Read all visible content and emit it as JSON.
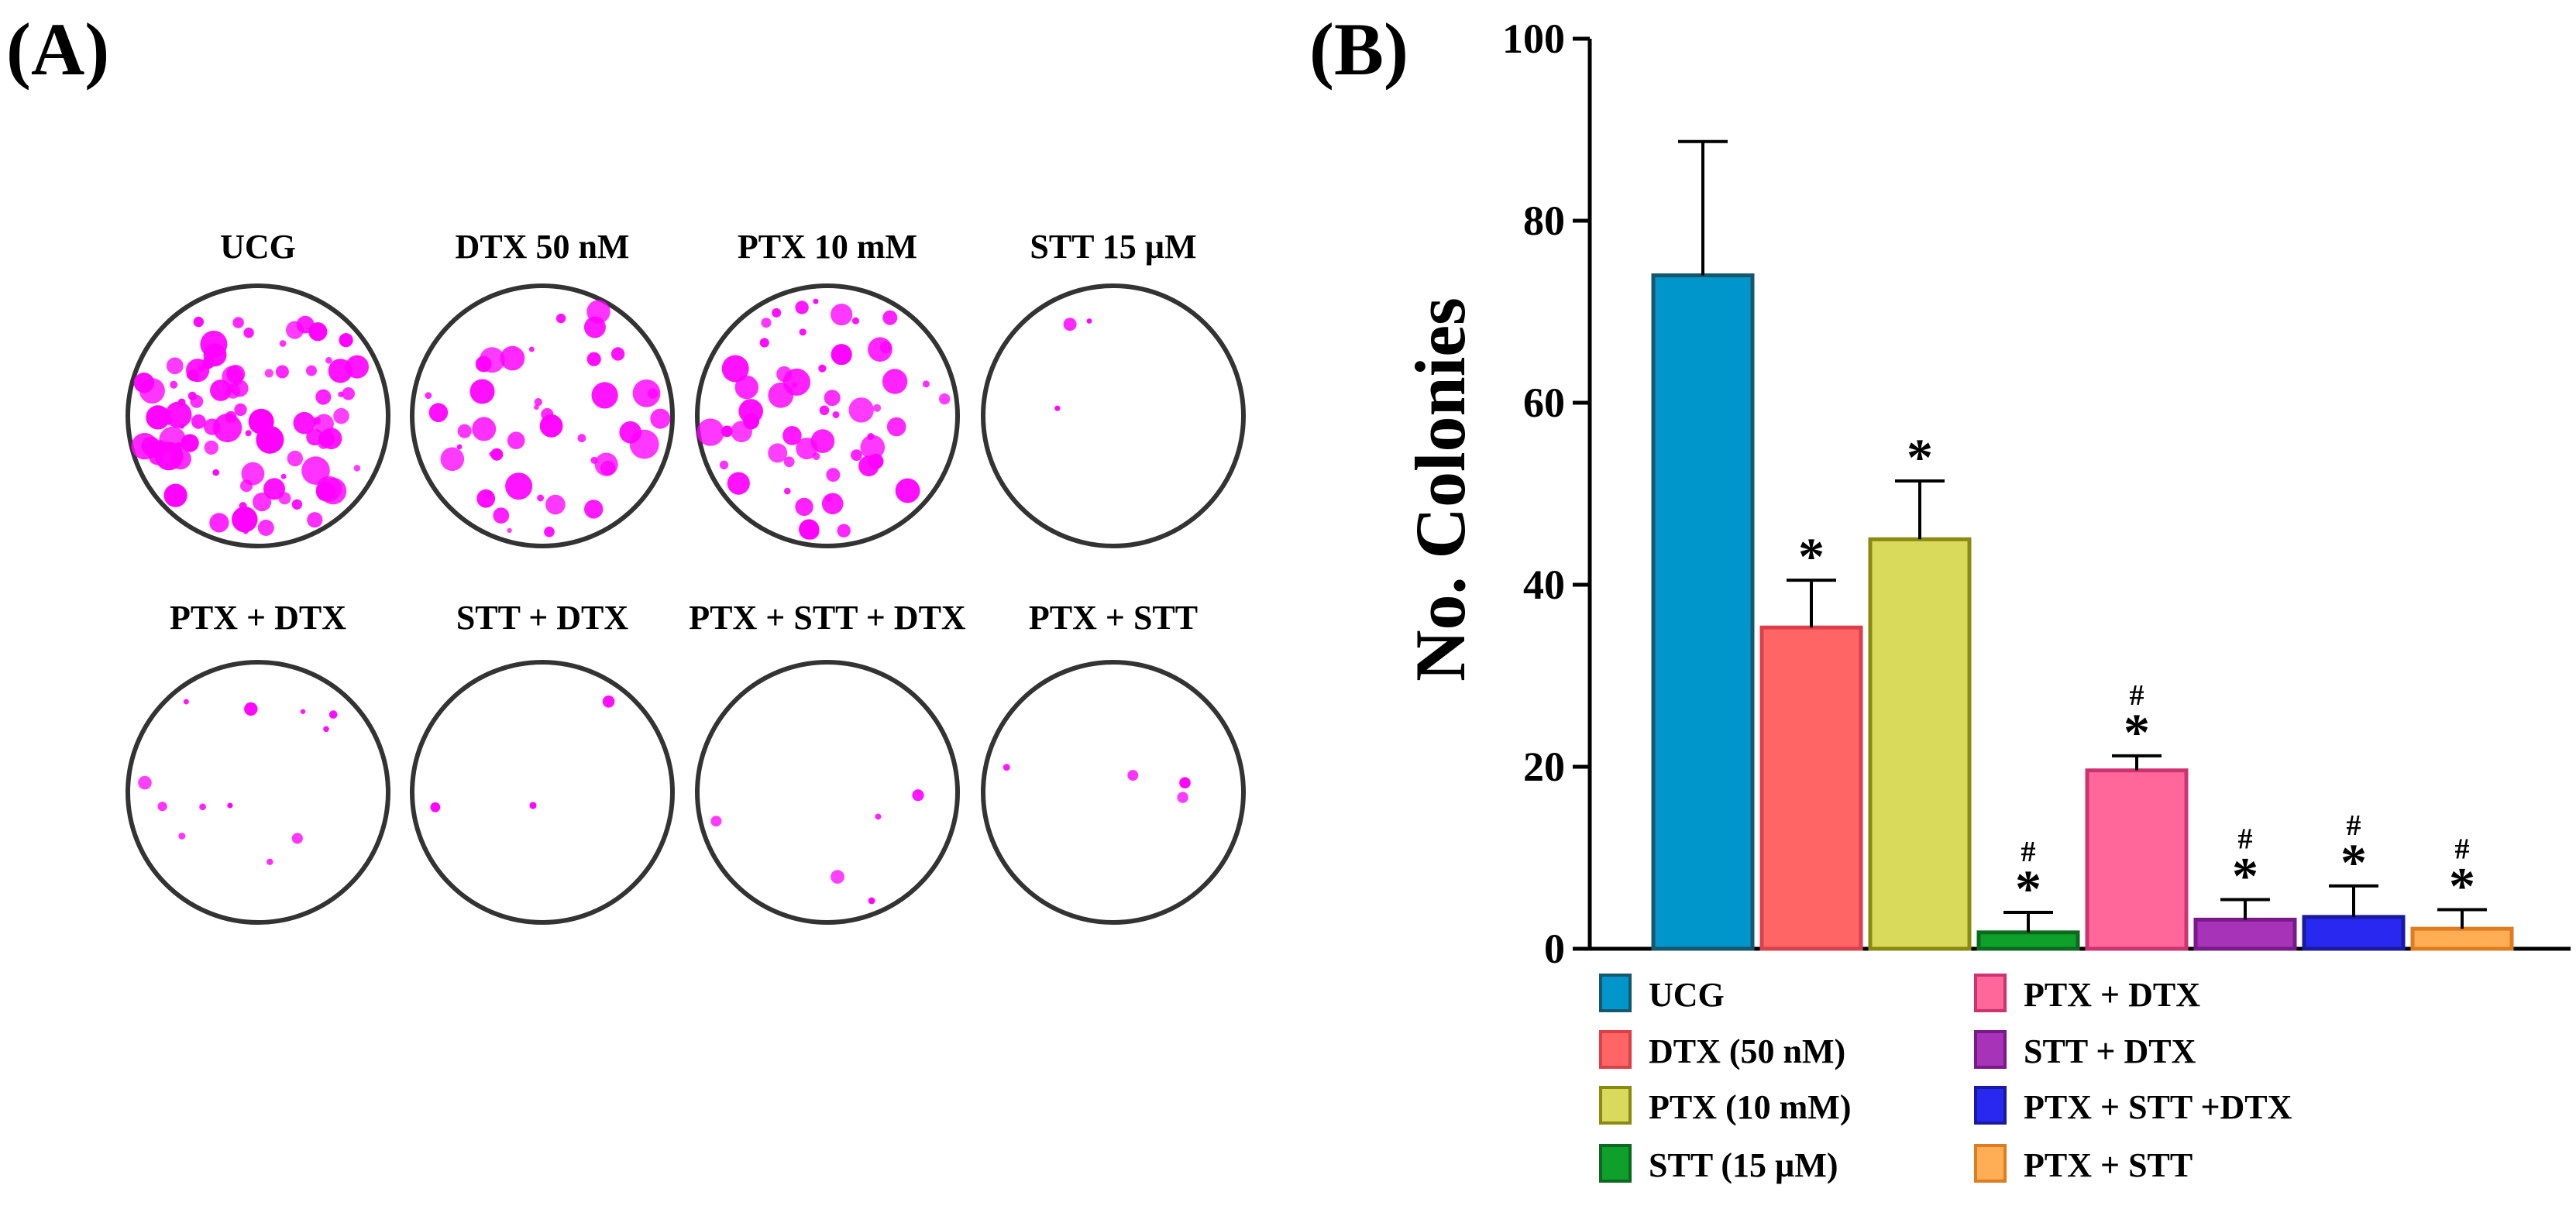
{
  "panels": {
    "a_label": "(A)",
    "b_label": "(B)"
  },
  "dishes": [
    {
      "label": "UCG",
      "density": 1.0
    },
    {
      "label": "DTX 50 nM",
      "density": 0.45
    },
    {
      "label": "PTX 10 mM",
      "density": 0.6
    },
    {
      "label": "STT 15 µM",
      "density": 0.02
    },
    {
      "label": "PTX + DTX",
      "density": 0.12
    },
    {
      "label": "STT + DTX",
      "density": 0.02
    },
    {
      "label": "PTX + STT + DTX",
      "density": 0.04
    },
    {
      "label": "PTX + STT",
      "density": 0.03
    }
  ],
  "colors": {
    "colony": "#ff00ff",
    "dish_ring": "#333333"
  },
  "chart_data": {
    "type": "bar",
    "title": "",
    "xlabel": "",
    "ylabel": "No. Colonies",
    "ylim": [
      0,
      100
    ],
    "yticks": [
      "0",
      "20",
      "40",
      "60",
      "80",
      "100"
    ],
    "categories": [
      "UCG",
      "DTX (50 nM)",
      "PTX (10 mM)",
      "STT (15 µM)",
      "PTX + DTX",
      "STT + DTX",
      "PTX + STT +DTX",
      "PTX + STT"
    ],
    "values": [
      74,
      35.3,
      45,
      1.8,
      19.6,
      3.2,
      3.5,
      2.2
    ],
    "errors": [
      14.7,
      5.2,
      6.4,
      2.2,
      1.6,
      2.2,
      3.4,
      2.1
    ],
    "fills": [
      "#0096cc",
      "#ff6565",
      "#d9d95c",
      "#0fa02b",
      "#ff6699",
      "#a733b8",
      "#2828f0",
      "#ffae55"
    ],
    "strokes": [
      "#15586e",
      "#d9404a",
      "#8a8a10",
      "#0c6a1f",
      "#cc3370",
      "#7a1a8a",
      "#1a1aa0",
      "#e07c20"
    ],
    "stars": [
      "",
      "*",
      "*",
      "*",
      "*",
      "*",
      "*",
      "*"
    ],
    "hashes": [
      "",
      "",
      "",
      "#",
      "#",
      "#",
      "#",
      "#"
    ]
  }
}
